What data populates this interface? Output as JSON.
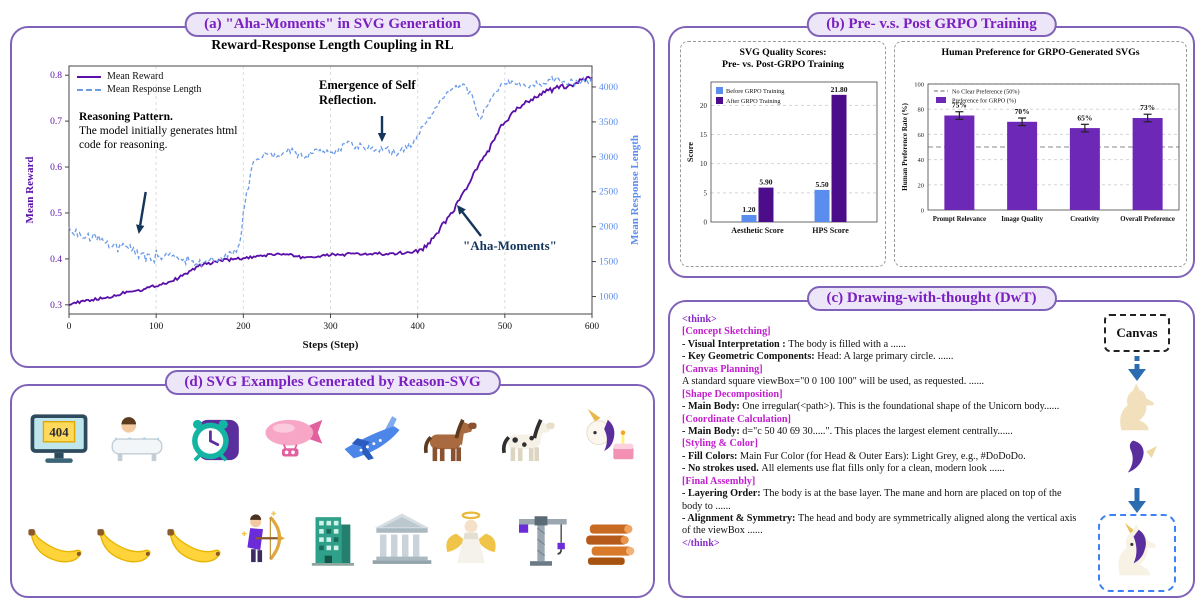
{
  "panels": {
    "a": {
      "badge": "(a) \"Aha-Moments\" in SVG Generation"
    },
    "b": {
      "badge": "(b) Pre- v.s. Post GRPO Training"
    },
    "c": {
      "badge": "(c) Drawing-with-thought (DwT)"
    },
    "d": {
      "badge": "(d) SVG Examples Generated by Reason-SVG"
    }
  },
  "chart_data": [
    {
      "type": "line",
      "title": "Reward-Response Length Coupling in RL",
      "xlabel": "Steps (Step)",
      "ylabel_left": "Mean Reward",
      "ylabel_right": "Mean Response Length",
      "xlim": [
        0,
        600
      ],
      "ylim_left": [
        0.28,
        0.82
      ],
      "ylim_right": [
        750,
        4300
      ],
      "x_ticks": [
        0,
        100,
        200,
        300,
        400,
        500,
        600
      ],
      "y_ticks_left": [
        0.3,
        0.4,
        0.5,
        0.6,
        0.7,
        0.8
      ],
      "y_ticks_right": [
        1000,
        1500,
        2000,
        2500,
        3000,
        3500,
        4000
      ],
      "grid": "vertical-dashed",
      "legend_position": "top-left",
      "series": [
        {
          "name": "Mean Reward",
          "axis": "left",
          "color": "#5A0FA8",
          "style": "solid",
          "points": [
            [
              0,
              0.305
            ],
            [
              40,
              0.315
            ],
            [
              80,
              0.332
            ],
            [
              120,
              0.355
            ],
            [
              150,
              0.385
            ],
            [
              170,
              0.398
            ],
            [
              200,
              0.403
            ],
            [
              240,
              0.41
            ],
            [
              270,
              0.404
            ],
            [
              300,
              0.41
            ],
            [
              340,
              0.408
            ],
            [
              370,
              0.412
            ],
            [
              395,
              0.415
            ],
            [
              410,
              0.428
            ],
            [
              425,
              0.462
            ],
            [
              440,
              0.5
            ],
            [
              455,
              0.548
            ],
            [
              470,
              0.598
            ],
            [
              485,
              0.648
            ],
            [
              500,
              0.7
            ],
            [
              515,
              0.732
            ],
            [
              530,
              0.752
            ],
            [
              545,
              0.762
            ],
            [
              560,
              0.77
            ],
            [
              580,
              0.779
            ],
            [
              600,
              0.792
            ]
          ]
        },
        {
          "name": "Mean Response Length",
          "axis": "right",
          "color": "#6C9BE8",
          "style": "dashed",
          "points": [
            [
              0,
              1950
            ],
            [
              30,
              1820
            ],
            [
              60,
              1700
            ],
            [
              90,
              1595
            ],
            [
              120,
              1525
            ],
            [
              150,
              1505
            ],
            [
              175,
              1560
            ],
            [
              195,
              1720
            ],
            [
              203,
              2400
            ],
            [
              212,
              2900
            ],
            [
              225,
              3060
            ],
            [
              240,
              3000
            ],
            [
              255,
              3090
            ],
            [
              270,
              3040
            ],
            [
              285,
              3120
            ],
            [
              300,
              3080
            ],
            [
              315,
              3190
            ],
            [
              330,
              3120
            ],
            [
              345,
              3175
            ],
            [
              360,
              3090
            ],
            [
              375,
              3020
            ],
            [
              390,
              3140
            ],
            [
              402,
              3320
            ],
            [
              412,
              3520
            ],
            [
              422,
              3720
            ],
            [
              432,
              3880
            ],
            [
              442,
              3990
            ],
            [
              452,
              4060
            ],
            [
              462,
              3880
            ],
            [
              470,
              3520
            ],
            [
              478,
              3660
            ],
            [
              488,
              3900
            ],
            [
              498,
              4040
            ],
            [
              510,
              4100
            ],
            [
              525,
              4010
            ],
            [
              540,
              4070
            ],
            [
              555,
              4140
            ],
            [
              570,
              4060
            ],
            [
              585,
              4110
            ],
            [
              600,
              4120
            ]
          ]
        }
      ],
      "annotations": [
        {
          "title": "Reasoning Pattern.",
          "body": "The model initially generates html code for reasoning."
        },
        {
          "title": "Emergence of Self Reflection.",
          "body": ""
        },
        {
          "title": "\"Aha-Moments\"",
          "body": ""
        }
      ]
    },
    {
      "type": "bar",
      "title": "SVG Quality Scores: Pre- vs. Post-GRPO Training",
      "title_lines": [
        "SVG Quality Scores:",
        "Pre- vs. Post-GRPO Training"
      ],
      "categories": [
        "Aesthetic Score",
        "HPS Score"
      ],
      "series": [
        {
          "name": "Before GRPO Training",
          "color": "#5B8DEF",
          "values": [
            1.2,
            5.5
          ]
        },
        {
          "name": "After GRPO Training",
          "color": "#4B0D8A",
          "values": [
            5.9,
            21.8
          ]
        }
      ],
      "value_labels": [
        [
          "1.20",
          "5.50"
        ],
        [
          "5.90",
          "21.80"
        ]
      ],
      "xlabel": "",
      "ylabel": "Score",
      "ylim": [
        0,
        24
      ],
      "y_ticks": [
        0,
        5,
        10,
        15,
        20
      ],
      "grid": "horizontal-dashed",
      "legend_position": "top-left"
    },
    {
      "type": "bar",
      "title": "Human Preference for GRPO-Generated SVGs",
      "categories": [
        "Prompt Relevance",
        "Image Quality",
        "Creativity",
        "Overall Preference"
      ],
      "values": [
        75,
        70,
        65,
        73
      ],
      "labels": [
        "75%",
        "70%",
        "65%",
        "73%"
      ],
      "bar_color": "#6D28B8",
      "error": 3,
      "xlabel": "",
      "ylabel": "Human Preference Rate (%)",
      "ylim": [
        0,
        100
      ],
      "y_ticks": [
        0,
        20,
        40,
        60,
        80,
        100
      ],
      "reference_line": {
        "value": 50,
        "label": "No Clear Preference (50%)"
      },
      "legend": [
        "No Clear Preference (50%)",
        "Preference for GRPO (%)"
      ],
      "grid": "horizontal-dashed"
    }
  ],
  "dwt": {
    "canvas_label": "Canvas",
    "lines": [
      [
        {
          "t": "<think>",
          "s": "think"
        }
      ],
      [
        {
          "t": "[Concept Sketching]",
          "s": "tag"
        }
      ],
      [
        {
          "t": "- Visual Interpretation : ",
          "s": "bold"
        },
        {
          "t": "The body is filled with a ......",
          "s": "normal"
        }
      ],
      [
        {
          "t": "- Key Geometric Components: ",
          "s": "bold"
        },
        {
          "t": "Head: A large primary circle. ......",
          "s": "normal"
        }
      ],
      [
        {
          "t": "[Canvas Planning]",
          "s": "tag"
        }
      ],
      [
        {
          "t": "A standard square viewBox=\"0 0 100 100\" will be used, as requested. ......",
          "s": "normal"
        }
      ],
      [
        {
          "t": "[Shape Decomposition]",
          "s": "tag"
        }
      ],
      [
        {
          "t": "- Main Body: ",
          "s": "bold"
        },
        {
          "t": "One irregular(<path>). This is the foundational shape of the Unicorn body......",
          "s": "normal"
        }
      ],
      [
        {
          "t": "[Coordinate Calculation]",
          "s": "tag"
        }
      ],
      [
        {
          "t": "- Main Body: ",
          "s": "bold"
        },
        {
          "t": "d=\"c 50 40 69 30.....\". This places the largest element centrally......",
          "s": "normal"
        }
      ],
      [
        {
          "t": "[Styling & Color]",
          "s": "tag"
        }
      ],
      [
        {
          "t": "- Fill Colors: ",
          "s": "bold"
        },
        {
          "t": "Main Fur Color (for Head & Outer Ears): Light Grey, e.g., #DoDoDo.",
          "s": "normal"
        }
      ],
      [
        {
          "t": "- No strokes used. ",
          "s": "bold"
        },
        {
          "t": "All elements use flat fills only for a clean, modern look ......",
          "s": "normal"
        }
      ],
      [
        {
          "t": "[Final Assembly]",
          "s": "tag"
        }
      ],
      [
        {
          "t": "- Layering Order: ",
          "s": "bold"
        },
        {
          "t": "The body is at the base layer. The mane and horn are placed on top of the body to ......",
          "s": "normal"
        }
      ],
      [
        {
          "t": "- Alignment & Symmetry: ",
          "s": "bold"
        },
        {
          "t": "The head and body are symmetrically aligned along the vertical axis of the viewBox ......",
          "s": "normal"
        }
      ],
      [
        {
          "t": "</think>",
          "s": "think"
        }
      ]
    ]
  },
  "svg_examples": {
    "monitor_text": "404",
    "rows": [
      [
        {
          "icon": "ic-monitor-404",
          "name": "error-404-monitor"
        },
        {
          "icon": "ic-bathtub",
          "name": "person-bathing"
        },
        {
          "icon": "ic-alarm-clock",
          "name": "alarm-clock"
        },
        {
          "icon": "ic-blimp",
          "name": "airship"
        },
        {
          "icon": "ic-airplane",
          "name": "airplane"
        },
        {
          "icon": "ic-horse",
          "name": "horse"
        },
        {
          "icon": "ic-spotted-horse",
          "name": "spotted-horse"
        },
        {
          "icon": "ic-unicorn-cake",
          "name": "unicorn-with-cake"
        }
      ],
      [
        {
          "icon": "ic-banana",
          "name": "banana-1"
        },
        {
          "icon": "ic-banana",
          "name": "banana-2"
        },
        {
          "icon": "ic-banana",
          "name": "banana-3"
        },
        {
          "icon": "ic-archer",
          "name": "archer"
        },
        {
          "icon": "ic-building",
          "name": "office-building"
        },
        {
          "icon": "ic-temple",
          "name": "greek-temple"
        },
        {
          "icon": "ic-angel",
          "name": "angel-statue"
        },
        {
          "icon": "ic-crane",
          "name": "construction-crane"
        },
        {
          "icon": "ic-logs",
          "name": "lumber-stack"
        }
      ]
    ]
  }
}
